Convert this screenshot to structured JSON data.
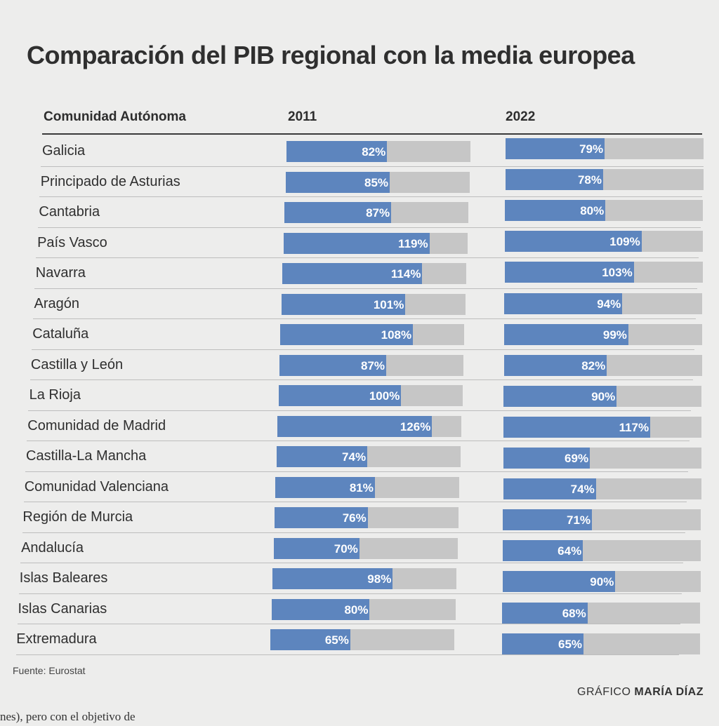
{
  "chart_data": {
    "type": "bar",
    "title": "Comparación del PIB regional con la media europea",
    "column_header": "Comunidad Autónoma",
    "series": [
      {
        "name": "2011",
        "values": [
          82,
          85,
          87,
          119,
          114,
          101,
          108,
          87,
          100,
          126,
          74,
          81,
          76,
          70,
          98,
          80,
          65
        ]
      },
      {
        "name": "2022",
        "values": [
          79,
          78,
          80,
          109,
          103,
          94,
          99,
          82,
          90,
          117,
          69,
          74,
          71,
          64,
          90,
          68,
          65
        ]
      }
    ],
    "categories": [
      "Galicia",
      "Principado de Asturias",
      "Cantabria",
      "País Vasco",
      "Navarra",
      "Aragón",
      "Cataluña",
      "Castilla y León",
      "La Rioja",
      "Comunidad de Madrid",
      "Castilla-La Mancha",
      "Comunidad Valenciana",
      "Región de Murcia",
      "Andalucía",
      "Islas Baleares",
      "Islas Canarias",
      "Extremadura"
    ],
    "unit_suffix": "%",
    "xlim": [
      0,
      150
    ]
  },
  "footer": {
    "source": "Fuente: Eurostat",
    "credit_prefix": "GRÁFICO ",
    "credit_name": "MARÍA DÍAZ",
    "cut_text": "nes), pero con el objetivo de"
  }
}
